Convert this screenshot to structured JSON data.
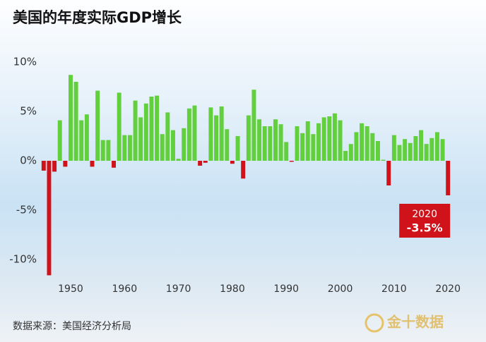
{
  "chart_data": {
    "type": "bar",
    "title": "美国的年度实际GDP增长",
    "x": [
      1945,
      1946,
      1947,
      1948,
      1949,
      1950,
      1951,
      1952,
      1953,
      1954,
      1955,
      1956,
      1957,
      1958,
      1959,
      1960,
      1961,
      1962,
      1963,
      1964,
      1965,
      1966,
      1967,
      1968,
      1969,
      1970,
      1971,
      1972,
      1973,
      1974,
      1975,
      1976,
      1977,
      1978,
      1979,
      1980,
      1981,
      1982,
      1983,
      1984,
      1985,
      1986,
      1987,
      1988,
      1989,
      1990,
      1991,
      1992,
      1993,
      1994,
      1995,
      1996,
      1997,
      1998,
      1999,
      2000,
      2001,
      2002,
      2003,
      2004,
      2005,
      2006,
      2007,
      2008,
      2009,
      2010,
      2011,
      2012,
      2013,
      2014,
      2015,
      2016,
      2017,
      2018,
      2019,
      2020
    ],
    "values": [
      -1.0,
      -11.6,
      -1.1,
      4.1,
      -0.6,
      8.7,
      8.0,
      4.1,
      4.7,
      -0.6,
      7.1,
      2.1,
      2.1,
      -0.7,
      6.9,
      2.6,
      2.6,
      6.1,
      4.4,
      5.8,
      6.5,
      6.6,
      2.7,
      4.9,
      3.1,
      0.2,
      3.3,
      5.3,
      5.6,
      -0.5,
      -0.2,
      5.4,
      4.6,
      5.5,
      3.2,
      -0.3,
      2.5,
      -1.8,
      4.6,
      7.2,
      4.2,
      3.5,
      3.5,
      4.2,
      3.7,
      1.9,
      -0.1,
      3.5,
      2.8,
      4.0,
      2.7,
      3.8,
      4.4,
      4.5,
      4.8,
      4.1,
      1.0,
      1.7,
      2.9,
      3.8,
      3.5,
      2.8,
      2.0,
      0.1,
      -2.5,
      2.6,
      1.6,
      2.2,
      1.8,
      2.5,
      3.1,
      1.7,
      2.3,
      2.9,
      2.2,
      -3.5
    ],
    "positive_color": "#62cf3c",
    "negative_color": "#d0121b",
    "xlim": [
      1944.5,
      2020.5
    ],
    "xticks": [
      1950,
      1960,
      1970,
      1980,
      1990,
      2000,
      2010,
      2020
    ],
    "ylim": [
      -12,
      11.5
    ],
    "yticks": [
      {
        "value": 10,
        "label": "10%"
      },
      {
        "value": 5,
        "label": "5%"
      },
      {
        "value": 0,
        "label": "0%"
      },
      {
        "value": -5,
        "label": "-5%"
      },
      {
        "value": -10,
        "label": "-10%"
      }
    ],
    "annotation": {
      "x": "2020",
      "value": "-3.5%"
    },
    "source": "数据来源：美国经济分析局",
    "logo": "金十数据"
  }
}
